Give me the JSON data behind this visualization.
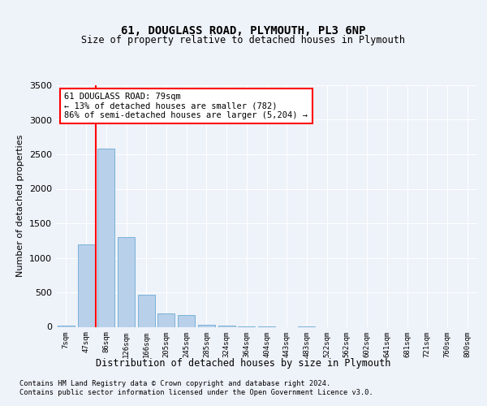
{
  "title1": "61, DOUGLASS ROAD, PLYMOUTH, PL3 6NP",
  "title2": "Size of property relative to detached houses in Plymouth",
  "xlabel": "Distribution of detached houses by size in Plymouth",
  "ylabel": "Number of detached properties",
  "bar_labels": [
    "7sqm",
    "47sqm",
    "86sqm",
    "126sqm",
    "166sqm",
    "205sqm",
    "245sqm",
    "285sqm",
    "324sqm",
    "364sqm",
    "404sqm",
    "443sqm",
    "483sqm",
    "522sqm",
    "562sqm",
    "602sqm",
    "641sqm",
    "681sqm",
    "721sqm",
    "760sqm",
    "800sqm"
  ],
  "bar_values": [
    20,
    1200,
    2580,
    1300,
    470,
    200,
    165,
    30,
    20,
    5,
    5,
    0,
    5,
    0,
    0,
    0,
    0,
    0,
    0,
    0,
    0
  ],
  "bar_color": "#b8d0ea",
  "bar_edgecolor": "#6aaad4",
  "annotation_text": "61 DOUGLASS ROAD: 79sqm\n← 13% of detached houses are smaller (782)\n86% of semi-detached houses are larger (5,204) →",
  "annotation_box_edgecolor": "red",
  "annotation_line_color": "red",
  "ylim": [
    0,
    3500
  ],
  "yticks": [
    0,
    500,
    1000,
    1500,
    2000,
    2500,
    3000,
    3500
  ],
  "footer1": "Contains HM Land Registry data © Crown copyright and database right 2024.",
  "footer2": "Contains public sector information licensed under the Open Government Licence v3.0.",
  "bg_color": "#eef2f9",
  "plot_bg_color": "#eef2f9"
}
